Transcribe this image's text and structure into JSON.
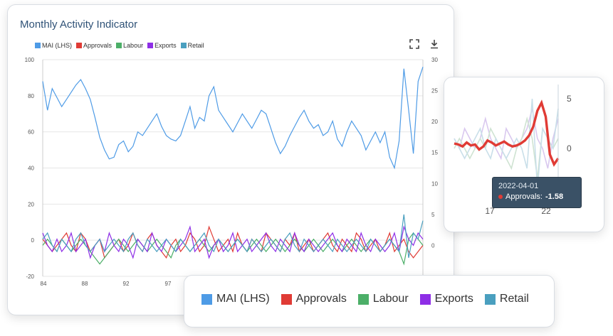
{
  "title": "Monthly Activity Indicator",
  "legend": [
    {
      "label": "MAI (LHS)",
      "color": "#4e9be6"
    },
    {
      "label": "Approvals",
      "color": "#e03b35"
    },
    {
      "label": "Labour",
      "color": "#4caf68"
    },
    {
      "label": "Exports",
      "color": "#8e2ee6"
    },
    {
      "label": "Retail",
      "color": "#4a9fbf"
    }
  ],
  "toolbar": {
    "fullscreen_icon": "fullscreen-icon",
    "download_icon": "download-icon"
  },
  "chart_data": {
    "type": "line",
    "x_ticks": [
      "84",
      "88",
      "92",
      "97"
    ],
    "y_left_ticks": [
      "100",
      "80",
      "60",
      "40",
      "20",
      "0",
      "-20"
    ],
    "y_right_ticks": [
      "30",
      "25",
      "20",
      "15",
      "10",
      "5",
      "0"
    ],
    "y_left_lim": [
      -20,
      100
    ],
    "y_right_lim": [
      -5,
      30
    ],
    "series": [
      {
        "name": "MAI (LHS)",
        "axis": "left",
        "values": [
          88,
          72,
          84,
          79,
          74,
          78,
          82,
          86,
          89,
          84,
          78,
          68,
          57,
          50,
          45,
          46,
          53,
          55,
          49,
          52,
          60,
          58,
          62,
          66,
          70,
          63,
          58,
          56,
          55,
          58,
          66,
          74,
          62,
          68,
          66,
          80,
          85,
          72,
          68,
          64,
          60,
          65,
          70,
          66,
          62,
          67,
          72,
          70,
          62,
          54,
          48,
          52,
          58,
          63,
          68,
          72,
          66,
          62,
          64,
          58,
          60,
          66,
          56,
          52,
          60,
          66,
          62,
          58,
          50,
          55,
          60,
          54,
          60,
          46,
          40,
          55,
          95,
          72,
          48,
          88,
          96
        ]
      },
      {
        "name": "Approvals",
        "axis": "right",
        "values": [
          1,
          0,
          -1,
          0,
          1,
          2,
          0,
          -1,
          2,
          1,
          -1,
          0,
          1,
          -2,
          -1,
          0,
          1,
          -1,
          0,
          2,
          0,
          -1,
          1,
          2,
          0,
          -1,
          -2,
          0,
          1,
          -1,
          0,
          2,
          1,
          -1,
          0,
          3,
          1,
          -1,
          0,
          1,
          -1,
          2,
          0,
          -1,
          1,
          0,
          -1,
          2,
          1,
          0,
          -1,
          1,
          0,
          2,
          -1,
          0,
          1,
          -1,
          0,
          1,
          2,
          0,
          -1,
          1,
          0,
          -1,
          2,
          1,
          -1,
          0,
          1,
          -1,
          0,
          2,
          -1,
          0,
          1,
          -1,
          -2,
          -1,
          0
        ]
      },
      {
        "name": "Labour",
        "axis": "right",
        "values": [
          0,
          1,
          0,
          -1,
          1,
          0,
          -1,
          0,
          1,
          0,
          -1,
          -2,
          -3,
          -2,
          -1,
          0,
          1,
          0,
          -1,
          0,
          1,
          0,
          -1,
          0,
          1,
          0,
          -1,
          -2,
          0,
          1,
          0,
          -1,
          0,
          1,
          0,
          -1,
          0,
          1,
          0,
          -1,
          0,
          1,
          0,
          -1,
          0,
          1,
          0,
          -1,
          0,
          1,
          0,
          -1,
          0,
          1,
          0,
          -1,
          0,
          1,
          0,
          -1,
          0,
          1,
          0,
          -1,
          0,
          1,
          0,
          -1,
          0,
          1,
          0,
          -1,
          0,
          1,
          0,
          -1,
          -3,
          1,
          2,
          1,
          0
        ]
      },
      {
        "name": "Exports",
        "axis": "right",
        "values": [
          2,
          0,
          -1,
          1,
          -1,
          0,
          2,
          -1,
          0,
          1,
          -2,
          0,
          1,
          -1,
          2,
          0,
          -1,
          1,
          0,
          -2,
          1,
          0,
          -1,
          2,
          0,
          -1,
          1,
          0,
          -1,
          0,
          1,
          3,
          -1,
          0,
          1,
          -2,
          0,
          1,
          -1,
          0,
          2,
          -1,
          0,
          1,
          -1,
          0,
          1,
          2,
          0,
          -1,
          1,
          0,
          -1,
          2,
          0,
          -1,
          1,
          0,
          -1,
          0,
          1,
          2,
          0,
          -1,
          1,
          0,
          -1,
          2,
          0,
          -1,
          1,
          0,
          -1,
          0,
          2,
          -1,
          3,
          1,
          0,
          2,
          1
        ]
      },
      {
        "name": "Retail",
        "axis": "right",
        "values": [
          1,
          2,
          0,
          -1,
          1,
          0,
          -1,
          1,
          2,
          0,
          -1,
          0,
          1,
          -1,
          0,
          1,
          0,
          -1,
          1,
          2,
          0,
          -1,
          1,
          0,
          -1,
          0,
          1,
          0,
          -1,
          1,
          0,
          -1,
          0,
          1,
          2,
          0,
          -1,
          1,
          0,
          -1,
          0,
          1,
          0,
          -1,
          1,
          0,
          -1,
          0,
          1,
          0,
          -1,
          1,
          2,
          0,
          -1,
          1,
          0,
          -1,
          0,
          1,
          0,
          -1,
          1,
          0,
          -1,
          0,
          1,
          0,
          -1,
          1,
          0,
          -1,
          0,
          1,
          0,
          -1,
          5,
          -2,
          2,
          1,
          4
        ]
      }
    ]
  },
  "zoom": {
    "y_ticks": [
      "5",
      "0"
    ],
    "x_ticks": [
      "17",
      "22"
    ],
    "approvals_values": [
      0.5,
      0.4,
      0.2,
      0.6,
      0.3,
      0.4,
      -0.1,
      0.2,
      0.8,
      0.6,
      0.3,
      0.5,
      0.7,
      0.4,
      0.2,
      0.3,
      0.5,
      0.8,
      1.3,
      2.2,
      3.8,
      4.6,
      3.2,
      -0.6,
      -1.6,
      -1.0
    ],
    "tooltip_date": "2022-04-01",
    "tooltip_label": "Approvals:",
    "tooltip_value": "-1.58"
  }
}
